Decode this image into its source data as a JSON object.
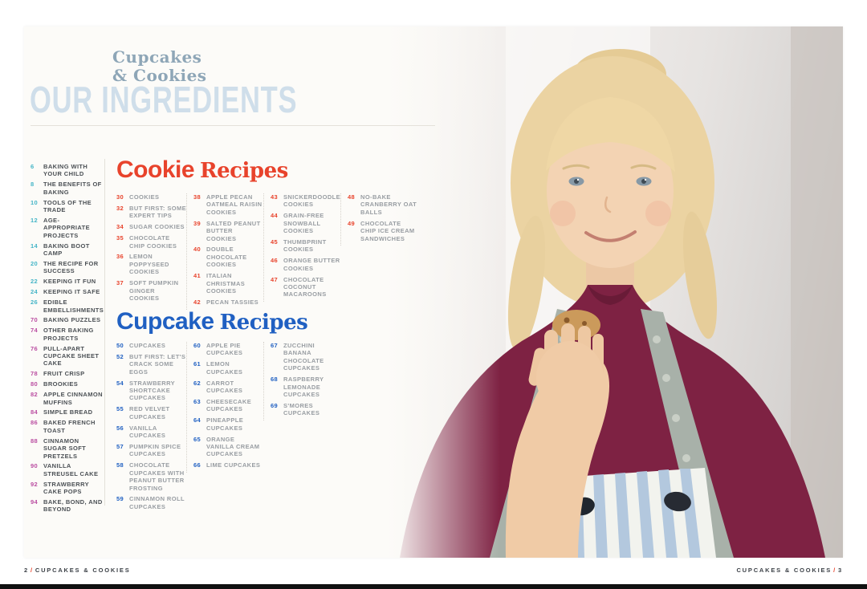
{
  "header": {
    "brand_line1": "Cupcakes",
    "brand_line2": "& Cookies",
    "title": "OUR INGREDIENTS"
  },
  "colors": {
    "accent_red": "#e8432c",
    "accent_blue": "#2060c2",
    "accent_teal": "#45b5c7",
    "accent_magenta": "#ba4da1",
    "title_blue": "#cfdeea",
    "brand_blue": "#8ea6b7"
  },
  "sidebar": {
    "items": [
      {
        "page": "6",
        "label": "BAKING WITH YOUR CHILD",
        "color": "teal"
      },
      {
        "page": "8",
        "label": "THE BENEFITS OF BAKING",
        "color": "teal"
      },
      {
        "page": "10",
        "label": "TOOLS OF THE TRADE",
        "color": "teal"
      },
      {
        "page": "12",
        "label": "AGE-APPROPRIATE PROJECTS",
        "color": "teal"
      },
      {
        "page": "14",
        "label": "BAKING BOOT CAMP",
        "color": "teal"
      },
      {
        "page": "20",
        "label": "THE RECIPE FOR SUCCESS",
        "color": "teal"
      },
      {
        "page": "22",
        "label": "KEEPING IT FUN",
        "color": "teal"
      },
      {
        "page": "24",
        "label": "KEEPING IT SAFE",
        "color": "teal"
      },
      {
        "page": "26",
        "label": "EDIBLE EMBELLISHMENTS",
        "color": "teal"
      },
      {
        "page": "70",
        "label": "BAKING PUZZLES",
        "color": "magenta"
      },
      {
        "page": "74",
        "label": "OTHER BAKING PROJECTS",
        "color": "magenta"
      },
      {
        "page": "76",
        "label": "PULL-APART CUPCAKE SHEET CAKE",
        "color": "magenta"
      },
      {
        "page": "78",
        "label": "FRUIT CRISP",
        "color": "magenta"
      },
      {
        "page": "80",
        "label": "BROOKIES",
        "color": "magenta"
      },
      {
        "page": "82",
        "label": "APPLE CINNAMON MUFFINS",
        "color": "magenta"
      },
      {
        "page": "84",
        "label": "SIMPLE BREAD",
        "color": "magenta"
      },
      {
        "page": "86",
        "label": "BAKED FRENCH TOAST",
        "color": "magenta"
      },
      {
        "page": "88",
        "label": "CINNAMON SUGAR SOFT PRETZELS",
        "color": "magenta"
      },
      {
        "page": "90",
        "label": "VANILLA STREUSEL CAKE",
        "color": "magenta"
      },
      {
        "page": "92",
        "label": "STRAWBERRY CAKE POPS",
        "color": "magenta"
      },
      {
        "page": "94",
        "label": "BAKE, BOND, AND BEYOND",
        "color": "magenta"
      }
    ]
  },
  "cookie_section": {
    "heading_word1": "Cookie",
    "heading_word2": "Recipes",
    "columns": [
      [
        {
          "page": "30",
          "label": "COOKIES"
        },
        {
          "page": "32",
          "label": "BUT FIRST: SOME EXPERT TIPS"
        },
        {
          "page": "34",
          "label": "SUGAR COOKIES"
        },
        {
          "page": "35",
          "label": "CHOCOLATE CHIP COOKIES"
        },
        {
          "page": "36",
          "label": "LEMON POPPYSEED COOKIES"
        },
        {
          "page": "37",
          "label": "SOFT PUMPKIN GINGER COOKIES"
        }
      ],
      [
        {
          "page": "38",
          "label": "APPLE PECAN OATMEAL RAISIN COOKIES"
        },
        {
          "page": "39",
          "label": "SALTED PEANUT BUTTER COOKIES"
        },
        {
          "page": "40",
          "label": "DOUBLE CHOCOLATE COOKIES"
        },
        {
          "page": "41",
          "label": "ITALIAN CHRISTMAS COOKIES"
        },
        {
          "page": "42",
          "label": "PECAN TASSIES"
        }
      ],
      [
        {
          "page": "43",
          "label": "SNICKERDOODLE COOKIES"
        },
        {
          "page": "44",
          "label": "GRAIN-FREE SNOWBALL COOKIES"
        },
        {
          "page": "45",
          "label": "THUMBPRINT COOKIES"
        },
        {
          "page": "46",
          "label": "ORANGE BUTTER COOKIES"
        },
        {
          "page": "47",
          "label": "CHOCOLATE COCONUT MACAROONS"
        }
      ],
      [
        {
          "page": "48",
          "label": "NO-BAKE CRANBERRY OAT BALLS"
        },
        {
          "page": "49",
          "label": "CHOCOLATE CHIP ICE CREAM SANDWICHES"
        }
      ]
    ]
  },
  "cupcake_section": {
    "heading_word1": "Cupcake",
    "heading_word2": "Recipes",
    "columns": [
      [
        {
          "page": "50",
          "label": "CUPCAKES"
        },
        {
          "page": "52",
          "label": "BUT FIRST: LET'S CRACK SOME EGGS"
        },
        {
          "page": "54",
          "label": "STRAWBERRY SHORTCAKE CUPCAKES"
        },
        {
          "page": "55",
          "label": "RED VELVET CUPCAKES"
        },
        {
          "page": "56",
          "label": "VANILLA CUPCAKES"
        },
        {
          "page": "57",
          "label": "PUMPKIN SPICE CUPCAKES"
        },
        {
          "page": "58",
          "label": "CHOCOLATE CUPCAKES WITH PEANUT BUTTER FROSTING"
        },
        {
          "page": "59",
          "label": "CINNAMON ROLL CUPCAKES"
        }
      ],
      [
        {
          "page": "60",
          "label": "APPLE PIE CUPCAKES"
        },
        {
          "page": "61",
          "label": "LEMON CUPCAKES"
        },
        {
          "page": "62",
          "label": "CARROT CUPCAKES"
        },
        {
          "page": "63",
          "label": "CHEESECAKE CUPCAKES"
        },
        {
          "page": "64",
          "label": "PINEAPPLE CUPCAKES"
        },
        {
          "page": "65",
          "label": "ORANGE VANILLA CREAM CUPCAKES"
        },
        {
          "page": "66",
          "label": "LIME CUPCAKES"
        }
      ],
      [
        {
          "page": "67",
          "label": "ZUCCHINI BANANA CHOCOLATE CUPCAKES"
        },
        {
          "page": "68",
          "label": "RASPBERRY LEMONADE CUPCAKES"
        },
        {
          "page": "69",
          "label": "S'MORES CUPCAKES"
        }
      ]
    ]
  },
  "footer": {
    "left_page": "2",
    "separator": "/",
    "left_text": "CUPCAKES & COOKIES",
    "right_text": "CUPCAKES & COOKIES",
    "right_page": "3"
  }
}
